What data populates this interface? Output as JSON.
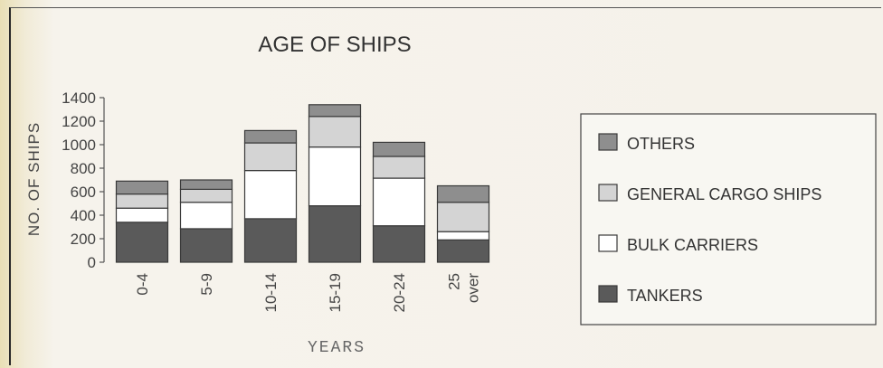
{
  "chart_data": {
    "type": "bar",
    "stacked": true,
    "title": "AGE OF SHIPS",
    "xlabel": "YEARS",
    "ylabel": "NO. OF SHIPS",
    "ylim": [
      0,
      1400
    ],
    "yticks": [
      0,
      200,
      400,
      600,
      800,
      1000,
      1200,
      1400
    ],
    "categories": [
      [
        "0-4"
      ],
      [
        "5-9"
      ],
      [
        "10-14"
      ],
      [
        "15-19"
      ],
      [
        "20-24"
      ],
      [
        "25",
        "over"
      ]
    ],
    "series": [
      {
        "name": "TANKERS",
        "color": "#5a5a5a",
        "values": [
          340,
          285,
          370,
          480,
          310,
          190
        ]
      },
      {
        "name": "BULK CARRIERS",
        "color": "#ffffff",
        "values": [
          120,
          225,
          410,
          500,
          405,
          70
        ]
      },
      {
        "name": "GENERAL CARGO SHIPS",
        "color": "#d4d4d4",
        "values": [
          120,
          110,
          235,
          260,
          185,
          250
        ]
      },
      {
        "name": "OTHERS",
        "color": "#8e8e8e",
        "values": [
          110,
          80,
          105,
          100,
          120,
          140
        ]
      }
    ],
    "legend": {
      "position": "right",
      "order": [
        "OTHERS",
        "GENERAL CARGO SHIPS",
        "BULK CARRIERS",
        "TANKERS"
      ]
    },
    "grid": false
  }
}
